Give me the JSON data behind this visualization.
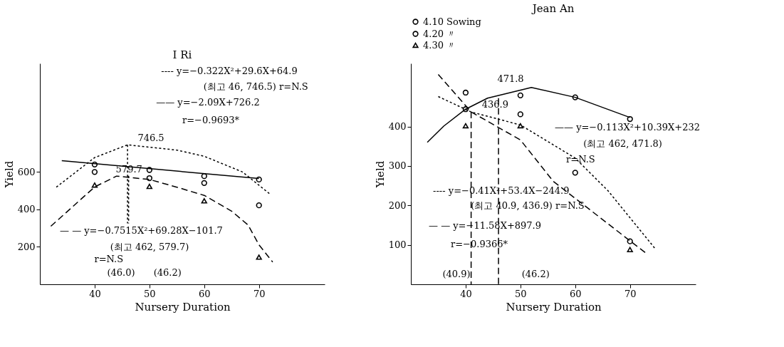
{
  "chart_data": [
    {
      "type": "scatter",
      "title": "I Ri",
      "xlabel": "Nursery Duration",
      "ylabel": "Yield",
      "xlim": [
        30,
        82
      ],
      "ylim": [
        0,
        1180
      ],
      "xticks": [
        40,
        50,
        60,
        70
      ],
      "yticks": [
        200,
        400,
        600
      ],
      "grid": false,
      "series": [
        {
          "marker": "circle",
          "color": "#000000",
          "x": [
            40,
            50,
            60,
            70
          ],
          "values": [
            640,
            611,
            578,
            560
          ]
        },
        {
          "marker": "circle",
          "color": "#000000",
          "x": [
            40,
            50,
            60,
            70
          ],
          "values": [
            600,
            567,
            541,
            422
          ]
        },
        {
          "marker": "triangle",
          "color": "#000000",
          "x": [
            40,
            50,
            60,
            70
          ],
          "values": [
            530,
            523,
            446,
            145
          ]
        },
        {
          "type": "line",
          "line_style": "dotted",
          "color": "#000000",
          "x": [
            33,
            40,
            46,
            55,
            60,
            67,
            72
          ],
          "values": [
            519,
            677,
            745,
            717,
            684,
            600,
            482
          ]
        },
        {
          "type": "line",
          "line_style": "solid",
          "color": "#000000",
          "x": [
            34,
            70
          ],
          "values": [
            660,
            565
          ]
        },
        {
          "type": "line",
          "line_style": "dashed",
          "color": "#000000",
          "x": [
            32,
            40,
            44,
            50,
            55,
            60,
            65,
            68,
            70,
            72.5
          ],
          "values": [
            310,
            520,
            578,
            560,
            519,
            475,
            391,
            317,
            211,
            119
          ]
        },
        {
          "type": "line",
          "line_style": "dotted",
          "color": "#000000",
          "x": [
            46,
            46
          ],
          "values": [
            745,
            325
          ]
        },
        {
          "type": "line",
          "line_style": "dotted",
          "color": "#000000",
          "x": [
            46.2,
            46.2
          ],
          "values": [
            580,
            325
          ]
        }
      ],
      "annotations": [
        "---- y=−0.322X²+29.6X+64.9",
        "(최고 46, 746.5) r=N.S",
        "—— y=−2.09X+726.2",
        "r=−0.9693*",
        "746.5",
        "579.7",
        "— — y=−0.7515X²+69.28X−101.7",
        "(최고 462, 579.7)",
        "r=N.S",
        "(46.0)",
        "(46.2)"
      ]
    },
    {
      "type": "scatter",
      "title": "Jean An",
      "xlabel": "Nursery Duration",
      "ylabel": "Yield",
      "xlim": [
        30,
        82
      ],
      "ylim": [
        0,
        560
      ],
      "xticks": [
        40,
        50,
        60,
        70
      ],
      "yticks": [
        100,
        200,
        300,
        400
      ],
      "grid": false,
      "legend": "top",
      "series": [
        {
          "name": "4.10 Sowing",
          "marker": "circle",
          "color": "#000000",
          "x": [
            40,
            50,
            60,
            70
          ],
          "values": [
            444,
            479,
            474,
            419
          ]
        },
        {
          "name": "4.20 〃",
          "marker": "circle",
          "color": "#000000",
          "x": [
            40,
            50,
            60,
            70
          ],
          "values": [
            486,
            431,
            283,
            109
          ]
        },
        {
          "name": "4.30 〃",
          "marker": "triangle",
          "color": "#000000",
          "x": [
            40,
            50,
            60,
            70
          ],
          "values": [
            402,
            402,
            null,
            88
          ]
        },
        {
          "type": "line",
          "line_style": "solid",
          "color": "#000000",
          "x": [
            33,
            36,
            40,
            44,
            52,
            60,
            70
          ],
          "values": [
            360,
            401,
            444,
            472,
            499,
            474,
            423
          ]
        },
        {
          "type": "line",
          "line_style": "dotted",
          "color": "#000000",
          "x": [
            35,
            41,
            50,
            60,
            66,
            74.5
          ],
          "values": [
            476,
            437,
            404,
            320,
            237,
            92
          ]
        },
        {
          "type": "line",
          "line_style": "dashed",
          "color": "#000000",
          "x": [
            35,
            41,
            50,
            56,
            73
          ],
          "values": [
            532,
            437,
            366,
            261,
            78
          ]
        },
        {
          "type": "line",
          "line_style": "dashed",
          "color": "#000000",
          "x": [
            41,
            41
          ],
          "values": [
            437,
            0
          ]
        },
        {
          "type": "line",
          "line_style": "dashed",
          "color": "#000000",
          "x": [
            46,
            46
          ],
          "values": [
            472,
            0
          ]
        }
      ],
      "annotations": [
        "471.8",
        "436.9",
        "—— y=−0.113X²+10.39X+232",
        "(최고 462, 471.8)",
        "r=N.S",
        "---- y=−0.41X²+53.4X−244.9",
        "(최고 40.9, 436.9) r=N.S",
        "— — y=−11.58X+897.9",
        "r=−0.9366*",
        "(40.9)",
        "(46.2)"
      ]
    }
  ]
}
